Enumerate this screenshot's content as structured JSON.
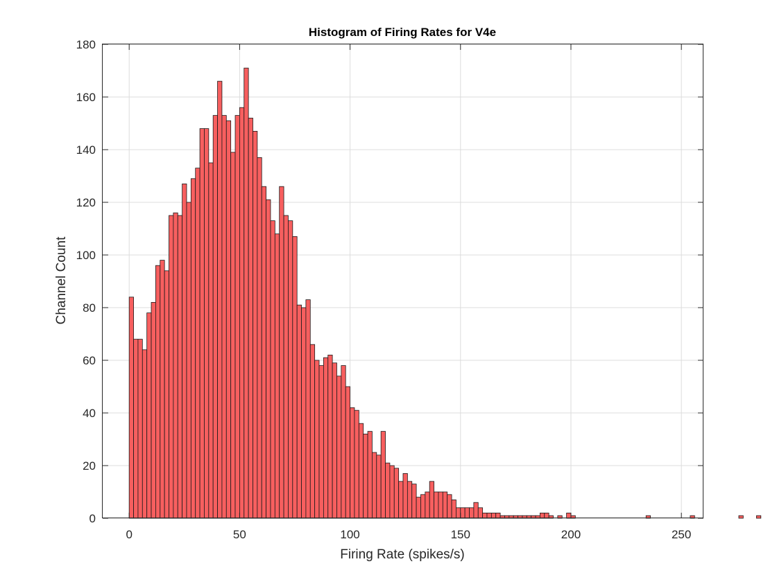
{
  "chart_data": {
    "type": "bar",
    "title": "Histogram of Firing Rates for V4e",
    "xlabel": "Firing Rate (spikes/s)",
    "ylabel": "Channel Count",
    "xlim": [
      -12,
      260
    ],
    "ylim": [
      0,
      180
    ],
    "xticks": [
      0,
      50,
      100,
      150,
      200,
      250
    ],
    "yticks": [
      0,
      20,
      40,
      60,
      80,
      100,
      120,
      140,
      160,
      180
    ],
    "grid": true,
    "bar_color": "#f75f5f",
    "bin_width": 2,
    "bin_start": 0,
    "values": [
      84,
      68,
      68,
      64,
      78,
      82,
      96,
      98,
      94,
      115,
      116,
      115,
      127,
      120,
      129,
      133,
      148,
      148,
      135,
      153,
      166,
      153,
      151,
      139,
      153,
      156,
      171,
      152,
      147,
      137,
      126,
      121,
      113,
      108,
      126,
      115,
      113,
      107,
      81,
      80,
      83,
      66,
      60,
      58,
      61,
      62,
      59,
      54,
      58,
      50,
      42,
      41,
      36,
      32,
      33,
      25,
      24,
      33,
      21,
      20,
      19,
      14,
      17,
      14,
      13,
      8,
      9,
      10,
      14,
      10,
      10,
      10,
      9,
      7,
      4,
      4,
      4,
      4,
      6,
      4,
      2,
      2,
      2,
      2,
      1,
      1,
      1,
      1,
      1,
      1,
      1,
      1,
      1,
      2,
      2,
      1,
      0,
      1,
      0,
      2,
      1,
      0,
      0,
      0,
      0,
      0,
      0,
      0,
      0,
      0,
      0,
      0,
      0,
      0,
      0,
      0,
      0,
      1,
      0,
      0,
      0,
      0,
      0,
      0,
      0,
      0,
      0,
      1,
      0,
      0,
      0,
      0,
      0,
      0,
      0,
      0,
      0,
      0,
      1,
      0,
      0,
      0,
      1
    ],
    "bar_fill": "#f75f5f",
    "tick_color": "#262626"
  }
}
